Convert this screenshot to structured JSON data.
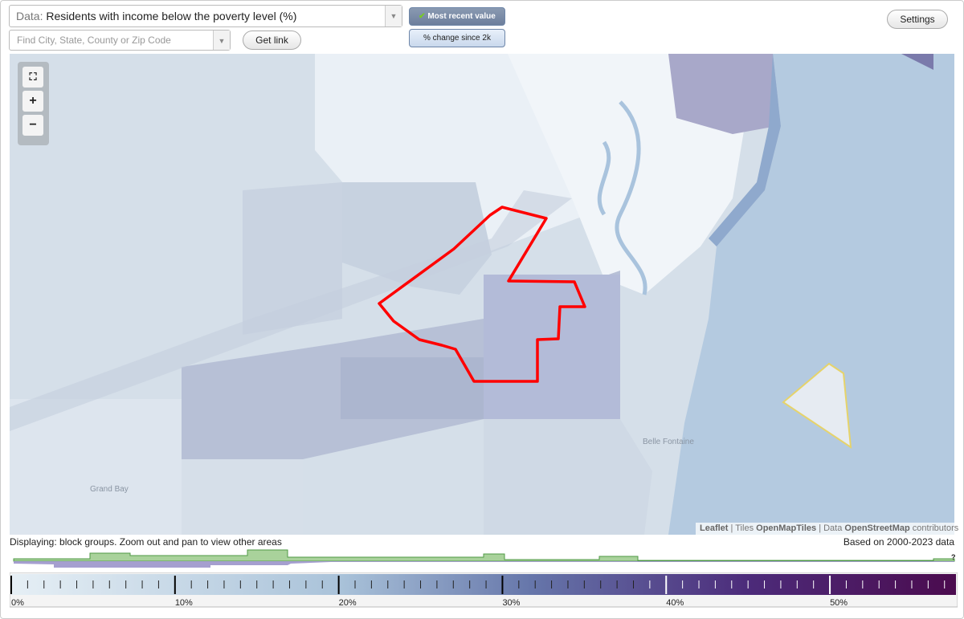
{
  "controls": {
    "data_label": "Data:",
    "data_value": "Residents with income below the poverty level (%)",
    "search_placeholder": "Find City, State, County or Zip Code",
    "get_link": "Get link",
    "most_recent": "Most recent value",
    "change_since": "% change since 2k",
    "settings": "Settings"
  },
  "map": {
    "places": [
      "Grand Bay",
      "Belle Fontaine"
    ],
    "attribution": {
      "leaflet": "Leaflet",
      "separator": "|",
      "tiles": "Tiles",
      "tiles_source": "OpenMapTiles",
      "data": "Data",
      "data_source": "OpenStreetMap",
      "contributors": "contributors"
    }
  },
  "footer": {
    "displaying": "Displaying: block groups. Zoom out and pan to view other areas",
    "based_on": "Based on 2000-2023 data",
    "help": "?"
  },
  "legend": {
    "range": [
      0,
      57.7
    ],
    "ticks": [
      {
        "value": 0,
        "label": "0%"
      },
      {
        "value": 10,
        "label": "10%"
      },
      {
        "value": 20,
        "label": "20%"
      },
      {
        "value": 30,
        "label": "30%"
      },
      {
        "value": 40,
        "label": "40%"
      },
      {
        "value": 50,
        "label": "50%"
      }
    ]
  }
}
